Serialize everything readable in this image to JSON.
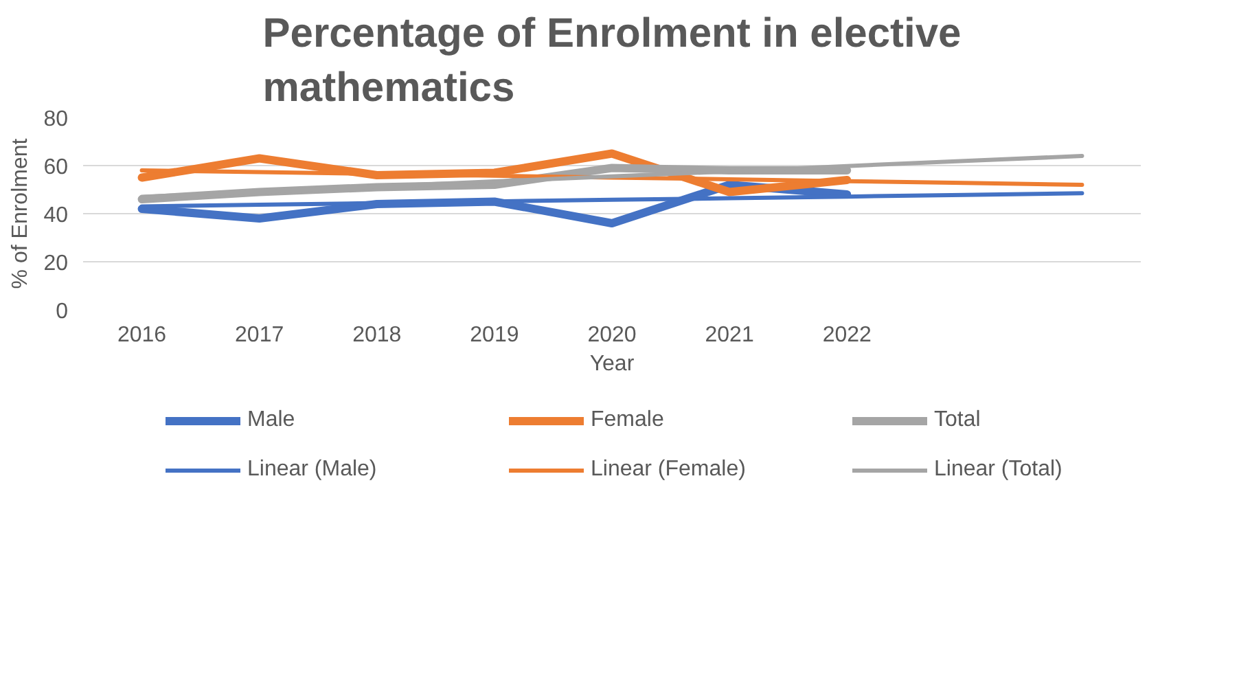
{
  "chart_data": {
    "type": "line",
    "title": "Percentage of Enrolment in elective mathematics",
    "xlabel": "Year",
    "ylabel": "% of Enrolment",
    "categories": [
      "2016",
      "2017",
      "2018",
      "2019",
      "2020",
      "2021",
      "2022",
      null,
      null
    ],
    "ylim": [
      0,
      80
    ],
    "yticks": [
      0,
      20,
      40,
      60,
      80
    ],
    "grid": "y",
    "legend": "bottom",
    "series": [
      {
        "name": "Male",
        "color": "#4472c4",
        "values": [
          42,
          38,
          44,
          45,
          36,
          52,
          48,
          null,
          null
        ]
      },
      {
        "name": "Female",
        "color": "#ed7d31",
        "values": [
          55,
          63,
          56,
          57,
          65,
          49,
          54,
          null,
          null
        ]
      },
      {
        "name": "Total",
        "color": "#a5a5a5",
        "values": [
          46,
          49,
          51,
          52,
          59,
          58,
          58,
          null,
          null
        ]
      },
      {
        "name": "Linear (Male)",
        "color": "#4472c4",
        "values": [
          43,
          43.7,
          44.4,
          45.1,
          45.8,
          46.4,
          47.1,
          47.8,
          48.5
        ]
      },
      {
        "name": "Linear (Female)",
        "color": "#ed7d31",
        "values": [
          58,
          57.3,
          56.5,
          55.8,
          55,
          54.3,
          53.5,
          52.8,
          52
        ]
      },
      {
        "name": "Linear (Total)",
        "color": "#a5a5a5",
        "values": [
          47,
          49.1,
          51.3,
          53.4,
          55.5,
          57.6,
          59.8,
          61.9,
          64
        ]
      }
    ]
  }
}
